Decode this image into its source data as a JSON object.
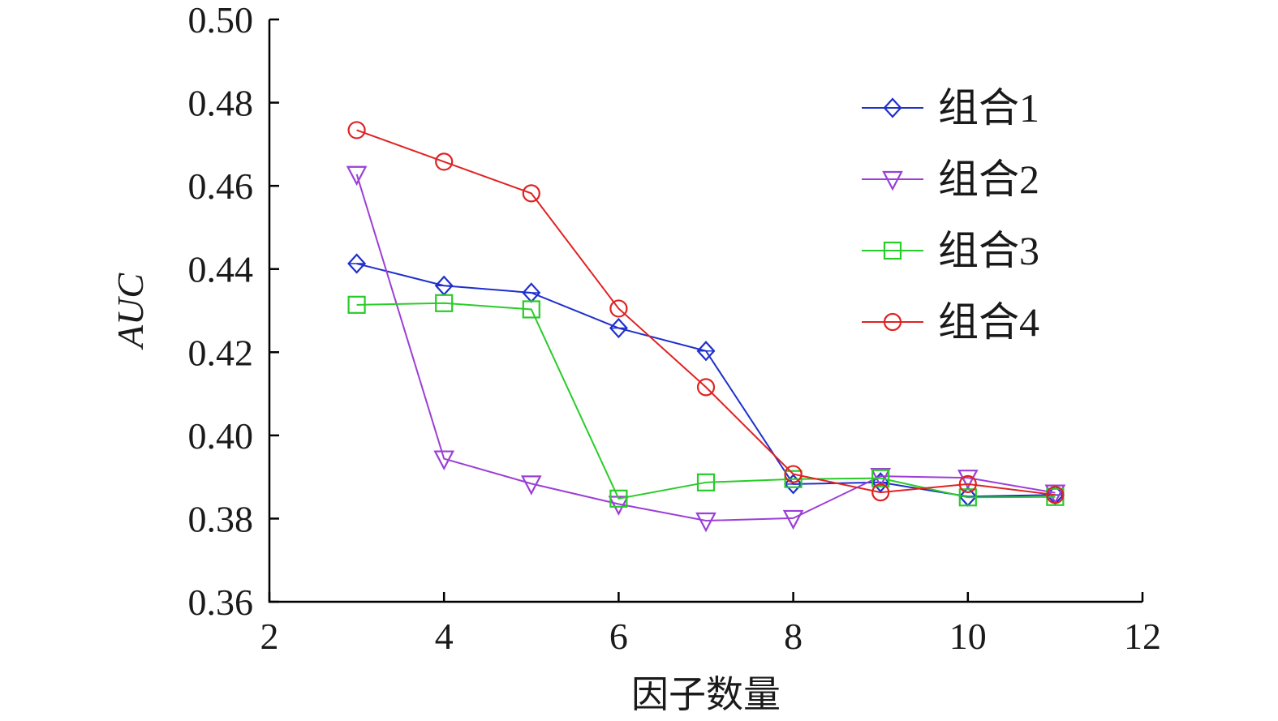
{
  "chart_data": {
    "type": "line",
    "title": "",
    "xlabel": "因子数量",
    "ylabel": "AUC",
    "xlim": [
      2,
      12
    ],
    "ylim": [
      0.36,
      0.5
    ],
    "xticks": [
      "2",
      "4",
      "6",
      "8",
      "10",
      "12"
    ],
    "yticks": [
      "0.36",
      "0.38",
      "0.40",
      "0.42",
      "0.44",
      "0.46",
      "0.48",
      "0.50"
    ],
    "grid": false,
    "legend_position": "top-right",
    "x": [
      3,
      4,
      5,
      6,
      7,
      8,
      9,
      10,
      11
    ],
    "series": [
      {
        "name": "组合1",
        "color": "#1f2fcc",
        "marker": "diamond",
        "values": [
          0.4413,
          0.436,
          0.4343,
          0.4258,
          0.4203,
          0.3883,
          0.3887,
          0.3853,
          0.3857
        ]
      },
      {
        "name": "组合2",
        "color": "#9b3fd6",
        "marker": "triangle-down",
        "values": [
          0.4628,
          0.3944,
          0.3884,
          0.3835,
          0.3795,
          0.3801,
          0.3902,
          0.3898,
          0.3862
        ]
      },
      {
        "name": "组合3",
        "color": "#28cc28",
        "marker": "square",
        "values": [
          0.4314,
          0.4318,
          0.4303,
          0.3848,
          0.3887,
          0.3895,
          0.3897,
          0.3851,
          0.3852
        ]
      },
      {
        "name": "组合4",
        "color": "#e02222",
        "marker": "circle",
        "values": [
          0.4734,
          0.4658,
          0.4582,
          0.4305,
          0.4116,
          0.3907,
          0.3863,
          0.3883,
          0.3857
        ]
      }
    ]
  }
}
